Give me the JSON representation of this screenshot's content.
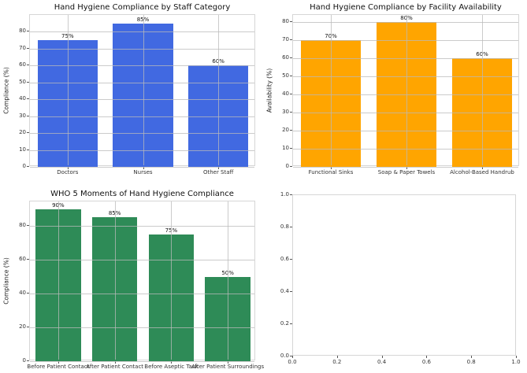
{
  "figure": {
    "background": "#ffffff",
    "layout": "2x2 subplot grid"
  },
  "chart_data": [
    {
      "type": "bar",
      "title": "Hand Hygiene Compliance by Staff Category",
      "xlabel": "",
      "ylabel": "Compliance (%)",
      "categories": [
        "Doctors",
        "Nurses",
        "Other Staff"
      ],
      "values": [
        75,
        85,
        60
      ],
      "value_labels": [
        "75%",
        "85%",
        "60%"
      ],
      "bar_color": "#4169e1",
      "ylim": [
        0,
        90
      ],
      "yticks": [
        0,
        10,
        20,
        30,
        40,
        50,
        60,
        70,
        80
      ],
      "ytick_labels": [
        "0",
        "10",
        "20",
        "30",
        "40",
        "50",
        "60",
        "70",
        "80"
      ],
      "grid": true,
      "legend": null
    },
    {
      "type": "bar",
      "title": "Hand Hygiene Compliance by Facility Availability",
      "xlabel": "",
      "ylabel": "Availability (%)",
      "categories": [
        "Functional Sinks",
        "Soap & Paper Towels",
        "Alcohol-Based Handrub"
      ],
      "values": [
        70,
        80,
        60
      ],
      "value_labels": [
        "70%",
        "80%",
        "60%"
      ],
      "bar_color": "#ffa500",
      "ylim": [
        0,
        84
      ],
      "yticks": [
        0,
        10,
        20,
        30,
        40,
        50,
        60,
        70,
        80
      ],
      "ytick_labels": [
        "0",
        "10",
        "20",
        "30",
        "40",
        "50",
        "60",
        "70",
        "80"
      ],
      "grid": true,
      "legend": null
    },
    {
      "type": "bar",
      "title": "WHO 5 Moments of Hand Hygiene Compliance",
      "xlabel": "",
      "ylabel": "Compliance (%)",
      "categories": [
        "Before Patient Contact",
        "After Patient Contact",
        "Before Aseptic Task",
        "After Patient Surroundings"
      ],
      "values": [
        90,
        85,
        75,
        50
      ],
      "value_labels": [
        "90%",
        "85%",
        "75%",
        "50%"
      ],
      "bar_color": "#2e8b57",
      "ylim": [
        0,
        94.5
      ],
      "yticks": [
        0,
        20,
        40,
        60,
        80
      ],
      "ytick_labels": [
        "0",
        "20",
        "40",
        "60",
        "80"
      ],
      "grid": true,
      "legend": null
    },
    {
      "type": "empty",
      "title": "",
      "xlabel": "",
      "ylabel": "",
      "xlim": [
        0,
        1
      ],
      "ylim": [
        0,
        1
      ],
      "xticks": [
        0,
        0.2,
        0.4,
        0.6,
        0.8,
        1.0
      ],
      "xtick_labels": [
        "0.0",
        "0.2",
        "0.4",
        "0.6",
        "0.8",
        "1.0"
      ],
      "yticks": [
        0,
        0.2,
        0.4,
        0.6,
        0.8,
        1.0
      ],
      "ytick_labels": [
        "0.0",
        "0.2",
        "0.4",
        "0.6",
        "0.8",
        "1.0"
      ],
      "grid": false,
      "legend": null
    }
  ]
}
